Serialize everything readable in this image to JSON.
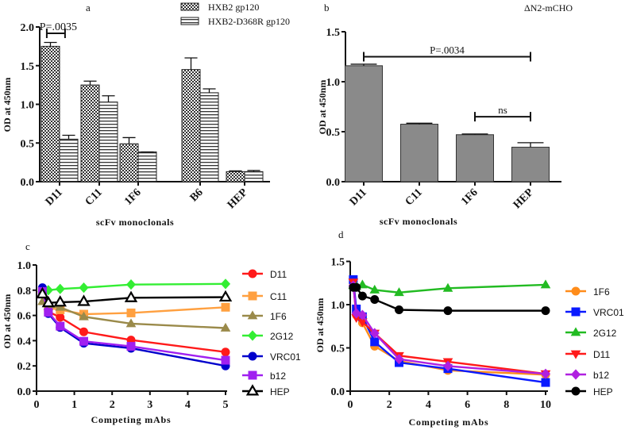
{
  "chart_data": [
    {
      "panel": "a",
      "type": "bar",
      "xlabel": "scFv monoclonals",
      "ylabel": "OD at 450nm",
      "ylim": [
        0,
        2.0
      ],
      "yticks": [
        "0.0",
        "0.5",
        "1.0",
        "1.5",
        "2.0"
      ],
      "categories": [
        "D11",
        "C11",
        "1F6",
        "B6",
        "HEP"
      ],
      "legend_position": "top-right",
      "series": [
        {
          "name": "HXB2 gp120",
          "pattern": "checkered",
          "values": [
            1.75,
            1.25,
            0.49,
            1.45,
            0.13
          ],
          "errors": [
            0.05,
            0.05,
            0.08,
            0.15,
            0.01
          ]
        },
        {
          "name": "HXB2-D368R gp120",
          "pattern": "horizontal-lines",
          "values": [
            0.55,
            1.03,
            0.385,
            1.15,
            0.13
          ],
          "errors": [
            0.05,
            0.08,
            0.0,
            0.05,
            0.015
          ]
        }
      ],
      "annotations": [
        {
          "text": "P=.0035",
          "from": "D11 HXB2 gp120",
          "to": "D11 HXB2-D368R gp120",
          "y": 1.9
        }
      ]
    },
    {
      "panel": "b",
      "type": "bar",
      "title": "ΔN2-mCHO",
      "xlabel": "scFv monoclonals",
      "ylabel": "OD at 450nm",
      "ylim": [
        0,
        1.5
      ],
      "yticks": [
        "0.0",
        "0.5",
        "1.0",
        "1.5"
      ],
      "categories": [
        "D11",
        "C11",
        "1F6",
        "HEP"
      ],
      "color": "#8a8a8a",
      "values": [
        1.16,
        0.575,
        0.47,
        0.345
      ],
      "errors": [
        0.015,
        0.01,
        0.007,
        0.045
      ],
      "annotations": [
        {
          "text": "P=.0034",
          "from": "D11",
          "to": "HEP",
          "y": 1.25
        },
        {
          "text": "ns",
          "from": "1F6",
          "to": "HEP",
          "y": 0.65
        }
      ]
    },
    {
      "panel": "c",
      "type": "line",
      "xlabel": "Competing mAbs",
      "ylabel": "OD at 450nm",
      "xlim": [
        0,
        5
      ],
      "ylim": [
        0,
        1.0
      ],
      "xticks": [
        "0",
        "1",
        "2",
        "3",
        "4",
        "5"
      ],
      "yticks": [
        "0.0",
        "0.2",
        "0.4",
        "0.6",
        "0.8",
        "1.0"
      ],
      "legend_position": "right",
      "x": [
        0.156,
        0.3125,
        0.625,
        1.25,
        2.5,
        5
      ],
      "series": [
        {
          "name": "D11",
          "color": "#ff1a1a",
          "marker": "circle",
          "values": [
            0.78,
            0.63,
            0.585,
            0.47,
            0.405,
            0.31
          ]
        },
        {
          "name": "C11",
          "color": "#ffa040",
          "marker": "square",
          "values": [
            0.78,
            0.66,
            0.645,
            0.61,
            0.62,
            0.665
          ]
        },
        {
          "name": "1F6",
          "color": "#9a8a4a",
          "marker": "triangle",
          "values": [
            0.71,
            0.67,
            0.665,
            0.59,
            0.535,
            0.5
          ]
        },
        {
          "name": "2G12",
          "color": "#33ee33",
          "marker": "diamond",
          "values": [
            0.79,
            0.8,
            0.81,
            0.82,
            0.845,
            0.85
          ]
        },
        {
          "name": "VRC01",
          "color": "#0000cc",
          "marker": "circle",
          "values": [
            0.82,
            0.615,
            0.505,
            0.38,
            0.34,
            0.2
          ]
        },
        {
          "name": "b12",
          "color": "#a020f0",
          "marker": "square",
          "values": [
            0.79,
            0.625,
            0.515,
            0.395,
            0.355,
            0.245
          ]
        },
        {
          "name": "HEP",
          "color": "#000000",
          "marker": "open-triangle",
          "values": [
            0.77,
            0.7,
            0.705,
            0.71,
            0.74,
            0.745
          ]
        }
      ]
    },
    {
      "panel": "d",
      "type": "line",
      "xlabel": "Competing mAbs",
      "ylabel": "OD at 450nm",
      "xlim": [
        0,
        10
      ],
      "ylim": [
        0,
        1.5
      ],
      "xticks": [
        "0",
        "2",
        "4",
        "6",
        "8",
        "10"
      ],
      "yticks": [
        "0.0",
        "0.5",
        "1.0",
        "1.5"
      ],
      "legend_position": "right",
      "x": [
        0.156,
        0.3125,
        0.625,
        1.25,
        2.5,
        5,
        10
      ],
      "series": [
        {
          "name": "1F6",
          "color": "#ff8c1a",
          "marker": "circle",
          "values": [
            1.25,
            0.88,
            0.79,
            0.52,
            0.35,
            0.24,
            0.19
          ]
        },
        {
          "name": "VRC01",
          "color": "#0a1aff",
          "marker": "square",
          "values": [
            1.29,
            0.95,
            0.86,
            0.57,
            0.33,
            0.26,
            0.1
          ]
        },
        {
          "name": "2G12",
          "color": "#22bb22",
          "marker": "triangle",
          "values": [
            1.22,
            1.21,
            1.23,
            1.17,
            1.14,
            1.19,
            1.23
          ]
        },
        {
          "name": "D11",
          "color": "#ff1a1a",
          "marker": "down-triangle",
          "values": [
            1.26,
            0.85,
            0.8,
            0.67,
            0.41,
            0.34,
            0.2
          ]
        },
        {
          "name": "b12",
          "color": "#b020e0",
          "marker": "diamond",
          "values": [
            1.22,
            0.9,
            0.88,
            0.67,
            0.37,
            0.29,
            0.2
          ]
        },
        {
          "name": "HEP",
          "color": "#000000",
          "marker": "circle",
          "values": [
            1.2,
            1.2,
            1.1,
            1.06,
            0.94,
            0.93,
            0.93
          ]
        }
      ]
    }
  ]
}
